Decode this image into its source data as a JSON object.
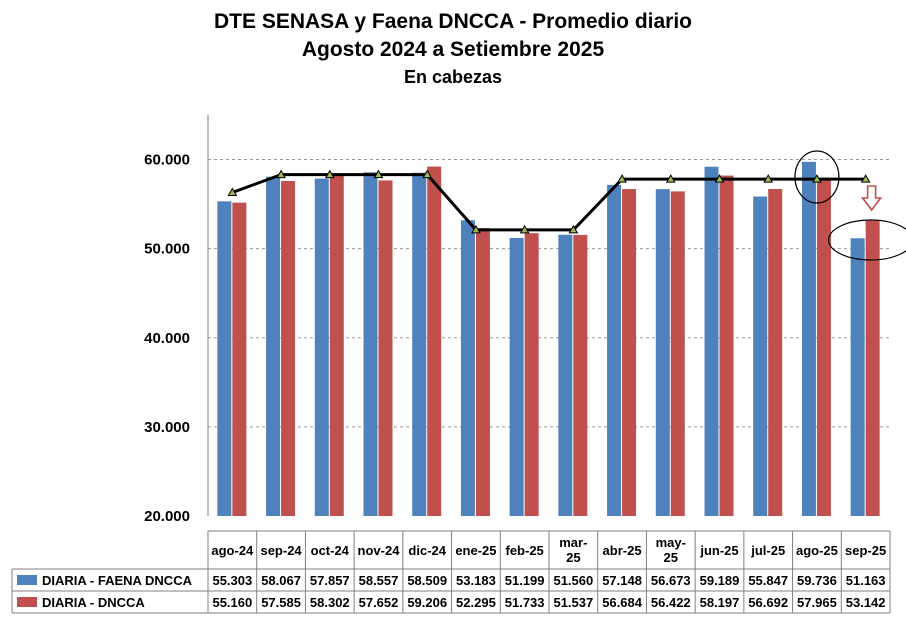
{
  "title": {
    "line1": "DTE SENASA  y Faena DNCCA - Promedio diario",
    "line2": "Agosto 2024 a Setiembre 2025",
    "line3": "En cabezas"
  },
  "colors": {
    "series1": "#4F81BD",
    "series2": "#C0504D",
    "trend": "#000000",
    "marker": "#9BBB59",
    "arrow": "#C0504D"
  },
  "chart_data": {
    "type": "bar",
    "title": "DTE SENASA  y Faena DNCCA - Promedio diario",
    "subtitle": "Agosto 2024 a Setiembre 2025",
    "ylabel": "En cabezas",
    "xlabel": "",
    "ylim": [
      20000,
      65000
    ],
    "yticks": [
      20000,
      30000,
      40000,
      50000,
      60000
    ],
    "ytick_labels": [
      "20.000",
      "30.000",
      "40.000",
      "50.000",
      "60.000"
    ],
    "grid": true,
    "categories": [
      "ago-24",
      "sep-24",
      "oct-24",
      "nov-24",
      "dic-24",
      "ene-25",
      "feb-25",
      "mar-25",
      "abr-25",
      "may-25",
      "jun-25",
      "jul-25",
      "ago-25",
      "sep-25"
    ],
    "category_lines": [
      [
        "ago-24"
      ],
      [
        "sep-24"
      ],
      [
        "oct-24"
      ],
      [
        "nov-24"
      ],
      [
        "dic-24"
      ],
      [
        "ene-25"
      ],
      [
        "feb-25"
      ],
      [
        "mar-",
        "25"
      ],
      [
        "abr-25"
      ],
      [
        "may-",
        "25"
      ],
      [
        "jun-25"
      ],
      [
        "jul-25"
      ],
      [
        "ago-25"
      ],
      [
        "sep-25"
      ]
    ],
    "series": [
      {
        "name": "DIARIA -   FAENA DNCCA",
        "values": [
          55303,
          58067,
          57857,
          58557,
          58509,
          53183,
          51199,
          51560,
          57148,
          56673,
          59189,
          55847,
          59736,
          51163
        ],
        "labels": [
          "55.303",
          "58.067",
          "57.857",
          "58.557",
          "58.509",
          "53.183",
          "51.199",
          "51.560",
          "57.148",
          "56.673",
          "59.189",
          "55.847",
          "59.736",
          "51.163"
        ]
      },
      {
        "name": "DIARIA - DNCCA",
        "values": [
          55160,
          57585,
          58302,
          57652,
          59206,
          52295,
          51733,
          51537,
          56684,
          56422,
          58197,
          56692,
          57965,
          53142
        ],
        "labels": [
          "55.160",
          "57.585",
          "58.302",
          "57.652",
          "59.206",
          "52.295",
          "51.733",
          "51.537",
          "56.684",
          "56.422",
          "58.197",
          "56.692",
          "57.965",
          "53.142"
        ]
      }
    ],
    "trend_line": [
      56300,
      58300,
      58300,
      58300,
      58300,
      52100,
      52100,
      52100,
      57800,
      57800,
      57800,
      57800,
      57800,
      57800
    ],
    "annotations": [
      {
        "type": "circle",
        "category": "ago-25"
      },
      {
        "type": "ellipse",
        "category": "sep-25"
      },
      {
        "type": "down-arrow",
        "category": "sep-25"
      }
    ],
    "data_table": true
  }
}
